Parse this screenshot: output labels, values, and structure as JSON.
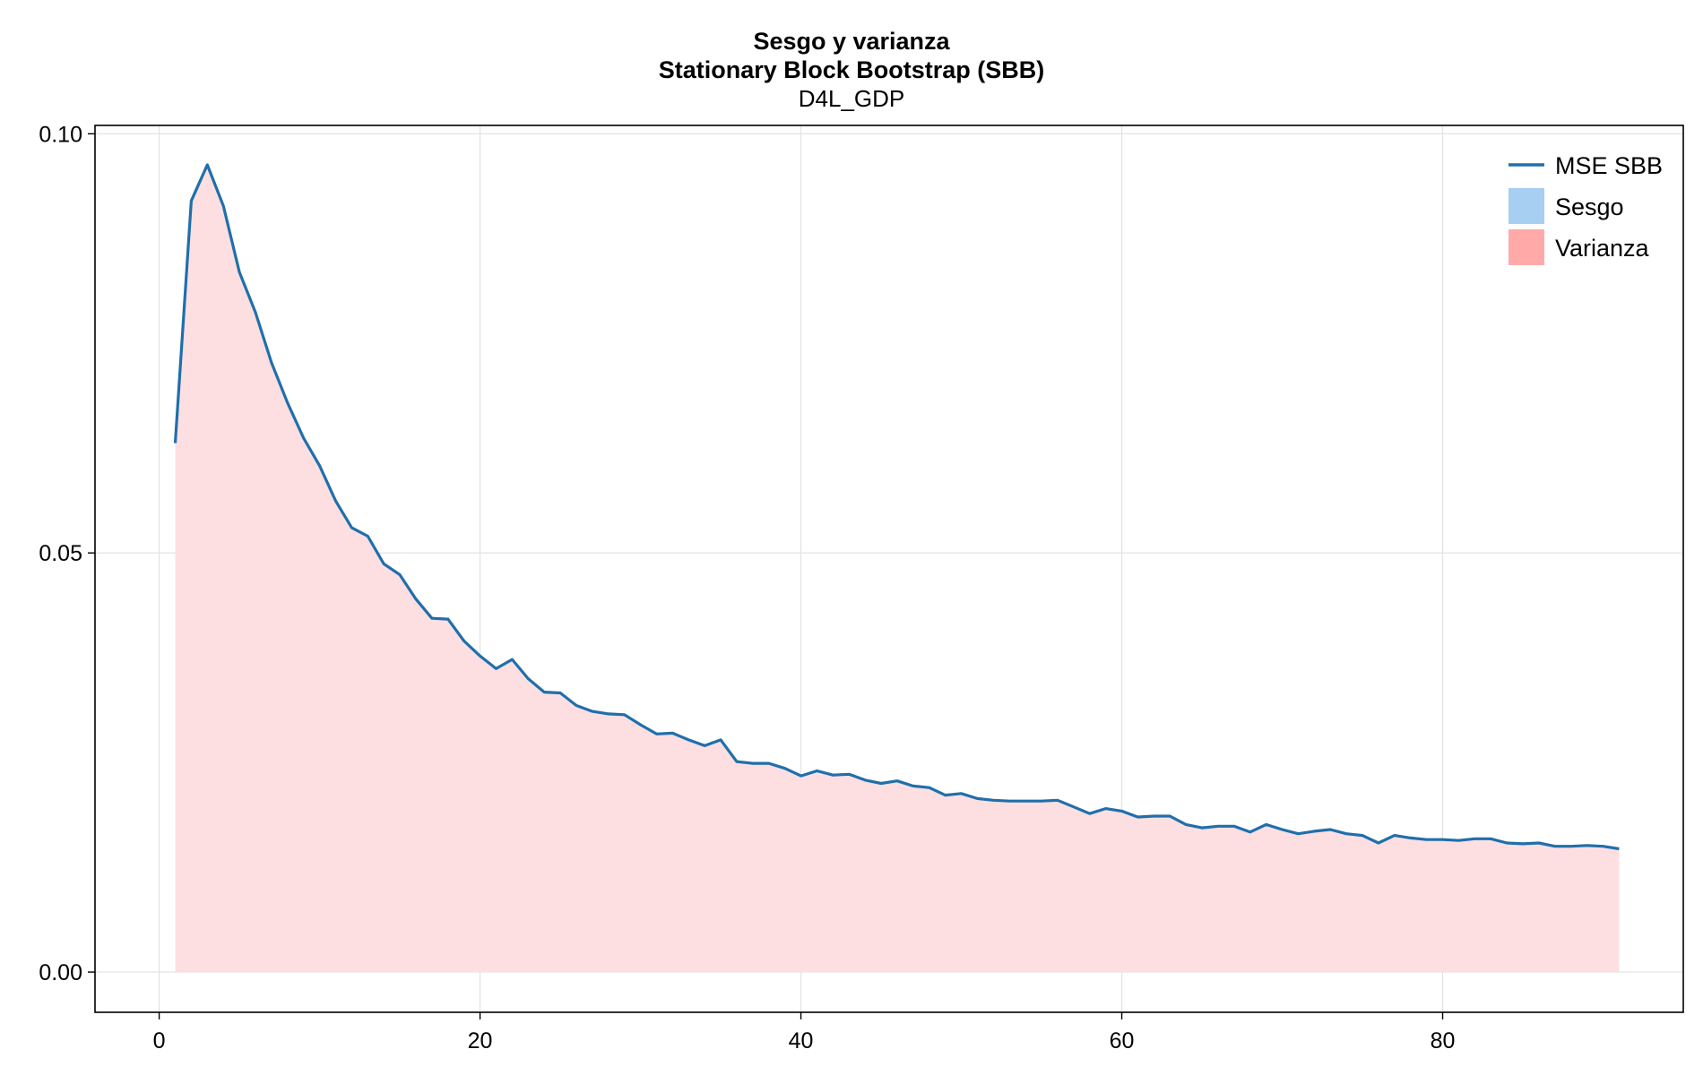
{
  "chart_data": {
    "type": "area",
    "title": "Sesgo y varianza",
    "subtitle": "Stationary Block Bootstrap (SBB)",
    "subtitle2": "D4L_GDP",
    "xlabel": "",
    "ylabel": "",
    "xlim": [
      -4,
      95
    ],
    "ylim": [
      -0.0048,
      0.101
    ],
    "xticks": [
      0,
      20,
      40,
      60,
      80
    ],
    "yticks": [
      0.0,
      0.05,
      0.1
    ],
    "xtick_labels": [
      "0",
      "20",
      "40",
      "60",
      "80"
    ],
    "ytick_labels": [
      "0.00",
      "0.05",
      "0.10"
    ],
    "grid": true,
    "legend_position": "top-right",
    "legend": [
      {
        "label": "MSE SBB",
        "kind": "line",
        "color": "#1f6fab"
      },
      {
        "label": "Sesgo",
        "kind": "patch",
        "color": "#a6cff2"
      },
      {
        "label": "Varianza",
        "kind": "patch",
        "color": "#ffa9a9"
      }
    ],
    "series": [
      {
        "name": "MSE SBB",
        "color": "#1f6fab",
        "x": [
          1,
          2,
          3,
          4,
          5,
          6,
          7,
          8,
          9,
          10,
          11,
          12,
          13,
          14,
          15,
          16,
          17,
          18,
          19,
          20,
          21,
          22,
          23,
          24,
          25,
          26,
          27,
          28,
          29,
          30,
          31,
          32,
          33,
          34,
          35,
          36,
          37,
          38,
          39,
          40,
          41,
          42,
          43,
          44,
          45,
          46,
          47,
          48,
          49,
          50,
          51,
          52,
          53,
          54,
          55,
          56,
          57,
          58,
          59,
          60,
          61,
          62,
          63,
          64,
          65,
          66,
          67,
          68,
          69,
          70,
          71,
          72,
          73,
          74,
          75,
          76,
          77,
          78,
          79,
          80,
          81,
          82,
          83,
          84,
          85,
          86,
          87,
          88,
          89,
          90,
          91
        ],
        "values": [
          0.0631,
          0.092,
          0.0963,
          0.0914,
          0.0835,
          0.0787,
          0.0727,
          0.0679,
          0.0637,
          0.0604,
          0.0562,
          0.053,
          0.052,
          0.0487,
          0.0474,
          0.0445,
          0.0422,
          0.0421,
          0.0395,
          0.0377,
          0.0362,
          0.0373,
          0.035,
          0.0334,
          0.0333,
          0.0318,
          0.0311,
          0.0308,
          0.0307,
          0.0295,
          0.0284,
          0.0285,
          0.0277,
          0.027,
          0.0277,
          0.0251,
          0.0249,
          0.0249,
          0.0243,
          0.0234,
          0.024,
          0.0235,
          0.0236,
          0.0229,
          0.0225,
          0.0228,
          0.0222,
          0.022,
          0.0211,
          0.0213,
          0.0207,
          0.0205,
          0.0204,
          0.0204,
          0.0204,
          0.0205,
          0.0197,
          0.0189,
          0.0195,
          0.0192,
          0.0185,
          0.0186,
          0.0186,
          0.0176,
          0.0172,
          0.0174,
          0.0174,
          0.0167,
          0.0176,
          0.017,
          0.0165,
          0.0168,
          0.017,
          0.0165,
          0.0163,
          0.0154,
          0.0163,
          0.016,
          0.0158,
          0.0158,
          0.0157,
          0.0159,
          0.0159,
          0.0154,
          0.0153,
          0.0154,
          0.015,
          0.015,
          0.0151,
          0.015,
          0.0147
        ]
      }
    ],
    "sesgo": [
      0,
      0,
      0,
      0,
      0,
      0,
      0,
      0,
      0,
      0,
      0,
      0,
      0,
      0,
      0,
      0,
      0,
      0,
      0,
      0,
      0,
      0,
      0,
      0,
      0,
      0,
      0,
      0,
      0,
      0,
      0,
      0,
      0,
      0,
      0,
      0,
      0,
      0,
      0,
      0,
      0,
      0,
      0,
      0,
      0,
      0,
      0,
      0,
      0,
      0,
      0,
      0,
      0,
      0,
      0,
      0,
      0,
      0,
      0,
      0,
      0,
      0,
      0,
      0,
      0,
      0,
      0,
      0,
      0,
      0,
      0,
      0,
      0,
      0,
      0,
      0,
      0,
      0,
      0,
      0,
      0,
      0,
      0,
      0,
      0,
      0,
      0,
      0,
      0,
      0,
      0
    ],
    "fill_colors": {
      "sesgo": "#a6cff2",
      "varianza": "#fddfe1"
    }
  }
}
